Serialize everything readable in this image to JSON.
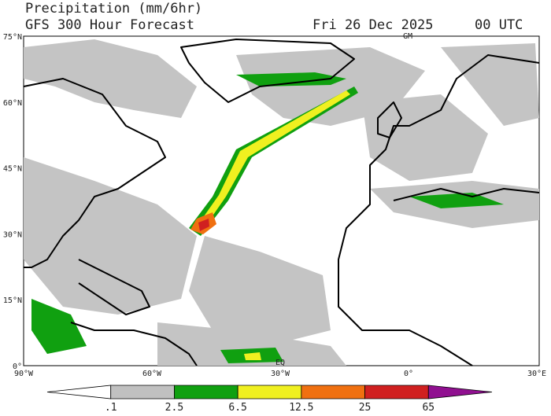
{
  "header": {
    "title": "Precipitation (mm/6hr)",
    "subtitle": "GFS 300 Hour Forecast",
    "date": "Fri 26 Dec 2025",
    "time": "00 UTC"
  },
  "map": {
    "lat_labels": [
      "75°N",
      "60°N",
      "45°N",
      "30°N",
      "15°N",
      "0°"
    ],
    "lon_labels": [
      "90°W",
      "60°W",
      "30°W",
      "0°",
      "30°E"
    ],
    "reference_labels": [
      "GM",
      "EQ"
    ]
  },
  "colorbar": {
    "labels": [
      ".1",
      "2.5",
      "6.5",
      "12.5",
      "25",
      "65"
    ],
    "colors": [
      "#ffffff",
      "#c0c0c0",
      "#10a010",
      "#f0f020",
      "#f07010",
      "#d02020",
      "#901090"
    ]
  }
}
